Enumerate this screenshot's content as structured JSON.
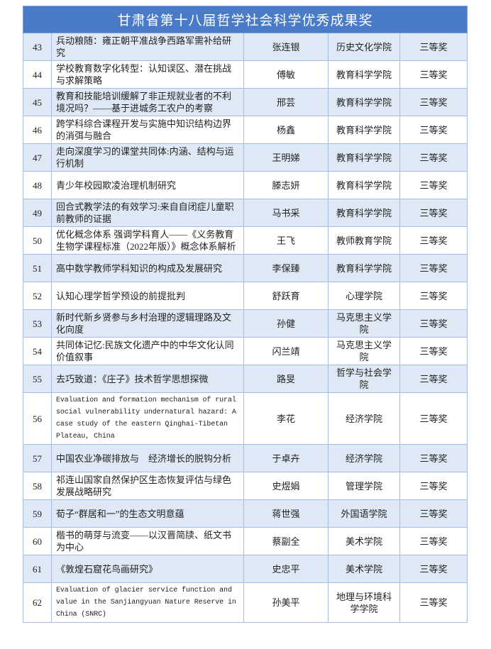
{
  "header": {
    "title": "甘肃省第十八届哲学社会科学优秀成果奖"
  },
  "table": {
    "rows": [
      [
        43,
        "兵动粮随：雍正朝平准战争西路军需补给研究",
        "张连银",
        "历史文化学院",
        "三等奖"
      ],
      [
        44,
        "学校教育数字化转型：认知误区、潜在挑战与求解策略",
        "傅敏",
        "教育科学学院",
        "三等奖"
      ],
      [
        45,
        "教育和技能培训缓解了非正规就业者的不利境况吗？——基于进城务工农户的考察",
        "邢芸",
        "教育科学学院",
        "三等奖"
      ],
      [
        46,
        "跨学科综合课程开发与实施中知识结构边界的消弭与融合",
        "杨鑫",
        "教育科学学院",
        "三等奖"
      ],
      [
        47,
        "走向深度学习的课堂共同体:内涵、结构与运行机制",
        "王明娣",
        "教育科学学院",
        "三等奖"
      ],
      [
        48,
        "青少年校园欺凌治理机制研究",
        "滕志妍",
        "教育科学学院",
        "三等奖"
      ],
      [
        49,
        "回合式教学法的有效学习:来自自闭症儿童职前教师的证据",
        "马书采",
        "教育科学学院",
        "三等奖"
      ],
      [
        50,
        "优化概念体系 强调学科育人——《义务教育生物学课程标准（2022年版）》概念体系解析",
        "王飞",
        "教师教育学院",
        "三等奖"
      ],
      [
        51,
        "高中数学教师学科知识的构成及发展研究",
        "李保臻",
        "教育科学学院",
        "三等奖"
      ],
      [
        52,
        "认知心理学哲学预设的前提批判",
        "舒跃育",
        "心理学院",
        "三等奖"
      ],
      [
        53,
        "新时代新乡贤参与乡村治理的逻辑理路及文化向度",
        "孙健",
        "马克思主义学院",
        "三等奖"
      ],
      [
        54,
        "共同体记忆:民族文化遗产中的中华文化认同价值叙事",
        "闪兰靖",
        "马克思主义学院",
        "三等奖"
      ],
      [
        55,
        "去巧致道：《庄子》技术哲学思想探微",
        "路旻",
        "哲学与社会学院",
        "三等奖"
      ],
      [
        56,
        "Evaluation and formation mechanism of rural social vulnerability undernatural hazard: A case study of the eastern Qinghai-Tibetan Plateau, China",
        "李花",
        "经济学院",
        "三等奖"
      ],
      [
        57,
        "中国农业净碳排放与　经济增长的脱钩分析",
        "于卓卉",
        "经济学院",
        "三等奖"
      ],
      [
        58,
        "祁连山国家自然保护区生态恢复评估与绿色发展战略研究",
        "史煜娟",
        "管理学院",
        "三等奖"
      ],
      [
        59,
        "荀子“群居和一”的生态文明意蕴",
        "蒋世强",
        "外国语学院",
        "三等奖"
      ],
      [
        60,
        "楷书的萌芽与流变——以汉晋简牍、纸文书为中心",
        "蔡副全",
        "美术学院",
        "三等奖"
      ],
      [
        61,
        "《敦煌石窟花鸟画研究》",
        "史忠平",
        "美术学院",
        "三等奖"
      ],
      [
        62,
        "Evaluation of glacier service function and value in the Sanjiangyuan Nature Reserve in China (SNRC)",
        "孙美平",
        "地理与环境科学学院",
        "三等奖"
      ]
    ]
  }
}
